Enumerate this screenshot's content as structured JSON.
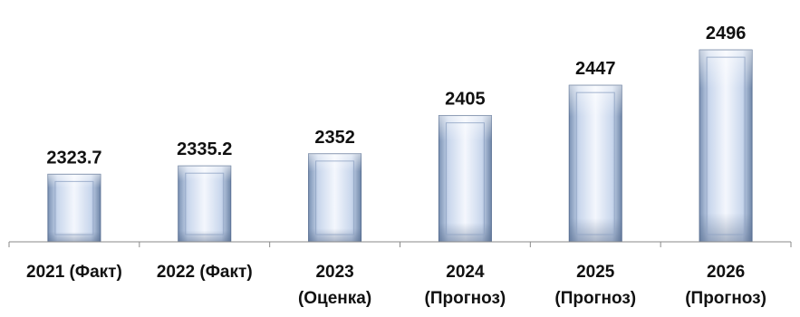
{
  "chart_data": {
    "type": "bar",
    "categories": [
      [
        "2021 (Факт)"
      ],
      [
        "2022 (Факт)"
      ],
      [
        "2023",
        "(Оценка)"
      ],
      [
        "2024",
        "(Прогноз)"
      ],
      [
        "2025",
        "(Прогноз)"
      ],
      [
        "2026",
        "(Прогноз)"
      ]
    ],
    "values": [
      2323.7,
      2335.2,
      2352,
      2405,
      2447,
      2496
    ],
    "value_labels": [
      "2323.7",
      "2335.2",
      "2352",
      "2405",
      "2447",
      "2496"
    ],
    "title": "",
    "xlabel": "",
    "ylabel": "",
    "ylim": [
      2230,
      2510
    ],
    "grid": false,
    "legend": "none",
    "colors": {
      "bar_light": "#f4f7fd",
      "bar_mid": "#c3d3ea",
      "bar_dark": "#6f86a8",
      "axis": "#8a8a8a"
    }
  }
}
